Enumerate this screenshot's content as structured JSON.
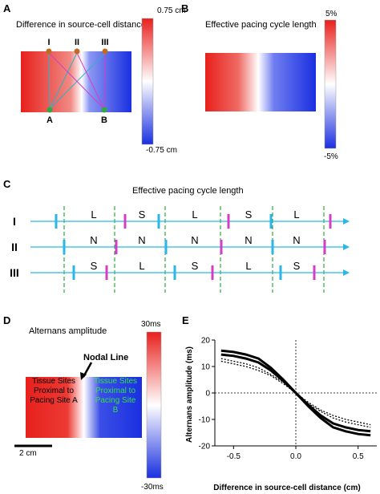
{
  "panels": {
    "A": {
      "label": "A",
      "title": "Difference in source-cell distance",
      "cbar_max": "0.75 cm",
      "cbar_min": "-0.75 cm",
      "sites_top": [
        "I",
        "II",
        "III"
      ],
      "sites_bottom": [
        "A",
        "B"
      ]
    },
    "B": {
      "label": "B",
      "title": "Effective pacing cycle length",
      "cbar_max": "5%",
      "cbar_min": "-5%"
    },
    "C": {
      "label": "C",
      "title": "Effective pacing cycle length",
      "rows": [
        {
          "name": "I",
          "cells": [
            "L",
            "S",
            "L",
            "S",
            "L"
          ]
        },
        {
          "name": "II",
          "cells": [
            "N",
            "N",
            "N",
            "N",
            "N"
          ]
        },
        {
          "name": "III",
          "cells": [
            "S",
            "L",
            "S",
            "L",
            "S"
          ]
        }
      ]
    },
    "D": {
      "label": "D",
      "title": "Alternans amplitude",
      "nodal_line": "Nodal Line",
      "left_text": "Tissue Sites Proximal to Pacing Site A",
      "right_text": "Tissue Sites Proximal to Pacing Site B",
      "scale_bar": "2 cm",
      "cbar_max": "30ms",
      "cbar_min": "-30ms"
    },
    "E": {
      "label": "E"
    }
  },
  "colors": {
    "red": "#e8201c",
    "blue": "#1a2fe0",
    "cyan": "#29b6e8",
    "magenta": "#d63cc9",
    "green": "#2faa3c",
    "orange": "#c26a1e"
  },
  "chart_data": {
    "type": "line",
    "xlabel": "Difference in source-cell distance (cm)",
    "ylabel": "Alternans amplitude (ms)",
    "xlim": [
      -0.65,
      0.65
    ],
    "ylim": [
      -20,
      20
    ],
    "xticks": [
      -0.5,
      0.0,
      0.5
    ],
    "yticks": [
      -20,
      -10,
      0,
      10,
      20
    ],
    "xtick_labels": [
      "-0.5",
      "0.0",
      "0.5"
    ],
    "ytick_labels": [
      "-20",
      "-10",
      "0",
      "10",
      "20"
    ],
    "reference_lines": {
      "x": 0,
      "y": 0
    },
    "grid": false,
    "series": [
      {
        "style": "solid",
        "x": [
          -0.6,
          -0.5,
          -0.4,
          -0.3,
          -0.2,
          -0.1,
          0.0,
          0.1,
          0.2,
          0.3,
          0.4,
          0.5,
          0.6
        ],
        "y": [
          16,
          15.5,
          14.5,
          13,
          9.5,
          5,
          0,
          -5,
          -9.5,
          -13,
          -14.5,
          -15.5,
          -16
        ]
      },
      {
        "style": "solid",
        "x": [
          -0.6,
          -0.5,
          -0.4,
          -0.3,
          -0.2,
          -0.1,
          0.0,
          0.1,
          0.2,
          0.3,
          0.4,
          0.5,
          0.6
        ],
        "y": [
          14.5,
          14,
          13,
          11.5,
          8.5,
          4.5,
          0,
          -4.5,
          -8.5,
          -11.5,
          -13,
          -14,
          -14.5
        ]
      },
      {
        "style": "dotted",
        "x": [
          -0.6,
          -0.5,
          -0.4,
          -0.3,
          -0.2,
          -0.1,
          0.0,
          0.1,
          0.2,
          0.3,
          0.4,
          0.5,
          0.6
        ],
        "y": [
          13,
          12,
          11,
          9.5,
          7,
          4,
          0,
          -4,
          -7,
          -9.5,
          -11,
          -12,
          -13
        ]
      },
      {
        "style": "dotted",
        "x": [
          -0.6,
          -0.5,
          -0.4,
          -0.3,
          -0.2,
          -0.1,
          0.0,
          0.1,
          0.2,
          0.3,
          0.4,
          0.5,
          0.6
        ],
        "y": [
          12,
          11,
          10,
          8.5,
          6.5,
          3.5,
          0,
          -3.5,
          -6.5,
          -8.5,
          -10,
          -11,
          -12
        ]
      }
    ]
  }
}
